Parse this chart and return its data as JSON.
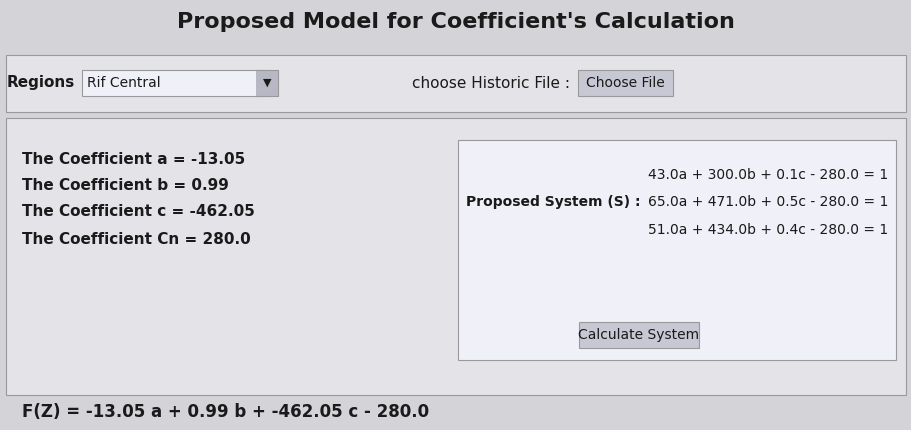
{
  "title": "Proposed Model for Coefficient's Calculation",
  "title_fontsize": 16,
  "title_fontweight": "bold",
  "bg_color": "#d4d4d8",
  "panel_color": "#e4e4e8",
  "white": "#f0f0f8",
  "border_color": "#999999",
  "text_color": "#1a1a1a",
  "region_label": "Regions",
  "region_value": "Rif Central",
  "historic_label": "choose Historic File :",
  "choose_file_btn": "Choose File",
  "coeff_a": "The Coefficient a = -13.05",
  "coeff_b": "The Coefficient b = 0.99",
  "coeff_c": "The Coefficient c = -462.05",
  "coeff_cn": "The Coefficient Cn = 280.0",
  "sys_label": "Proposed System (S) :",
  "eq1": "43.0a + 300.0b + 0.1c - 280.0 = 1",
  "eq2": "65.0a + 471.0b + 0.5c - 280.0 = 1",
  "eq3": "51.0a + 434.0b + 0.4c - 280.0 = 1",
  "calc_btn": "Calculate System",
  "fz_line": "F(Z) = -13.05 a + 0.99 b + -462.05 c - 280.0"
}
